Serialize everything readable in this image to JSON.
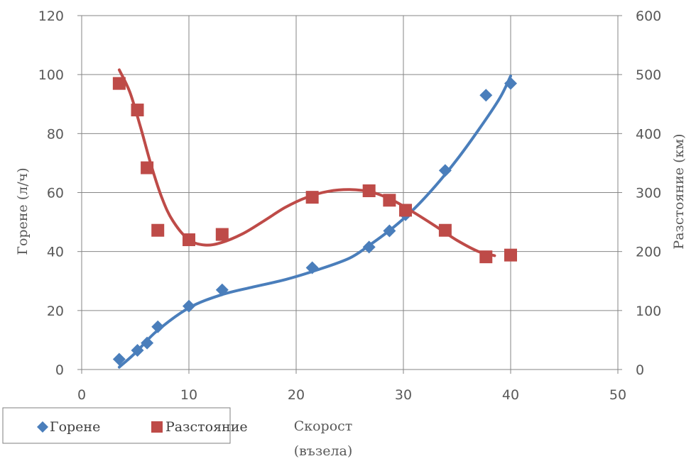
{
  "chart_data": {
    "type": "scatter",
    "xlabel_lines": [
      "Скорост",
      "(възела)"
    ],
    "ylabel_left": "Горене (л/ч)",
    "ylabel_right": "Разстояние (км)",
    "xlim": [
      0,
      50
    ],
    "ylim_left": [
      0,
      120
    ],
    "ylim_right": [
      0,
      600
    ],
    "x_ticks": [
      "0",
      "10",
      "20",
      "30",
      "40",
      "50"
    ],
    "y_left_ticks": [
      "0",
      "20",
      "40",
      "60",
      "80",
      "100",
      "120"
    ],
    "y_right_ticks": [
      "0",
      "100",
      "200",
      "300",
      "400",
      "500",
      "600"
    ],
    "grid": true,
    "legend_position": "bottom-left",
    "series": [
      {
        "name": "Горене",
        "axis": "left",
        "marker": "diamond",
        "color": "#4a7ebb",
        "points": [
          [
            3.5,
            3.5
          ],
          [
            5.2,
            6.5
          ],
          [
            6.1,
            9.0
          ],
          [
            7.1,
            14.5
          ],
          [
            10.0,
            21.5
          ],
          [
            13.1,
            27.0
          ],
          [
            21.5,
            34.5
          ],
          [
            26.8,
            41.5
          ],
          [
            28.7,
            47.0
          ],
          [
            30.2,
            52.5
          ],
          [
            33.9,
            67.5
          ],
          [
            37.7,
            93.0
          ],
          [
            40.0,
            97.0
          ]
        ],
        "trend": [
          [
            3.5,
            0.8
          ],
          [
            5.0,
            5.6
          ],
          [
            7.0,
            13.0
          ],
          [
            10.0,
            20.9
          ],
          [
            13.0,
            25.3
          ],
          [
            16.0,
            28.0
          ],
          [
            19.0,
            30.5
          ],
          [
            22.0,
            33.8
          ],
          [
            25.0,
            37.8
          ],
          [
            27.0,
            42.6
          ],
          [
            29.0,
            48.0
          ],
          [
            31.0,
            54.5
          ],
          [
            33.0,
            62.3
          ],
          [
            35.0,
            71.2
          ],
          [
            37.0,
            81.2
          ],
          [
            39.0,
            92.1
          ],
          [
            40.0,
            99.5
          ]
        ]
      },
      {
        "name": "Разстояние",
        "axis": "right",
        "marker": "square",
        "color": "#be4b48",
        "points": [
          [
            3.5,
            485
          ],
          [
            5.2,
            440
          ],
          [
            6.1,
            342
          ],
          [
            7.1,
            236
          ],
          [
            10.0,
            220
          ],
          [
            13.1,
            229
          ],
          [
            21.5,
            292
          ],
          [
            26.8,
            303
          ],
          [
            28.7,
            287
          ],
          [
            30.2,
            270
          ],
          [
            33.9,
            236
          ],
          [
            37.7,
            191
          ],
          [
            40.0,
            194
          ]
        ],
        "trend": [
          [
            3.5,
            508
          ],
          [
            4.5,
            470
          ],
          [
            5.5,
            410
          ],
          [
            6.5,
            345
          ],
          [
            7.5,
            290
          ],
          [
            8.5,
            252
          ],
          [
            10.0,
            220
          ],
          [
            11.5,
            211
          ],
          [
            13.0,
            215
          ],
          [
            15.0,
            230
          ],
          [
            17.0,
            252
          ],
          [
            19.0,
            275
          ],
          [
            21.0,
            292
          ],
          [
            23.0,
            302
          ],
          [
            25.0,
            305
          ],
          [
            27.0,
            301
          ],
          [
            29.0,
            287
          ],
          [
            31.0,
            266
          ],
          [
            33.0,
            243
          ],
          [
            35.0,
            219
          ],
          [
            37.0,
            200
          ],
          [
            38.5,
            193
          ]
        ]
      }
    ]
  }
}
